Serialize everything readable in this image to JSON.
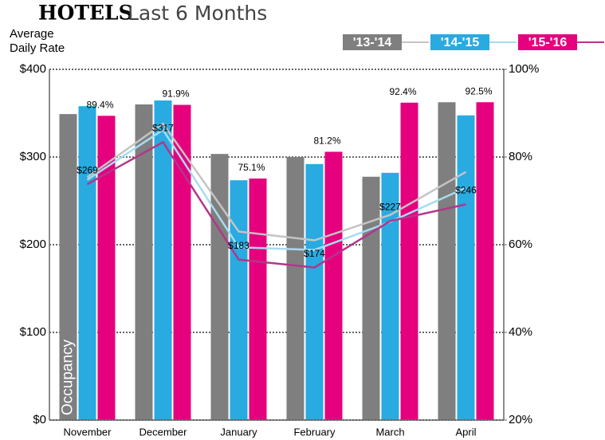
{
  "chart_data": {
    "type": "bar-line",
    "title": "HOTELS",
    "subtitle": "Last 6 Months",
    "y_label": "Average Daily Rate",
    "y2_label": "Occupancy",
    "categories": [
      "November",
      "December",
      "January",
      "February",
      "March",
      "April"
    ],
    "series": [
      {
        "name": "'13-'14",
        "color": "#7f7f7f",
        "line_color": "#c4c4c4",
        "axis": "y2",
        "values": [
          89.8,
          92.0,
          80.7,
          80.0,
          75.5,
          92.5
        ],
        "rate_values": [
          277,
          338,
          215,
          205,
          234,
          283
        ]
      },
      {
        "name": "'14-'15",
        "color": "#29aae1",
        "line_color": "#a6dcf0",
        "axis": "y2",
        "values": [
          91.6,
          92.9,
          74.7,
          78.4,
          76.4,
          89.5
        ],
        "rate_values": [
          274,
          331,
          197,
          194,
          226,
          265
        ]
      },
      {
        "name": "'15-'16",
        "color": "#e5007e",
        "line_color": "#b2368a",
        "axis": "y2",
        "values": [
          89.4,
          91.9,
          75.1,
          81.2,
          92.4,
          92.5
        ],
        "value_labels": [
          "89.4%",
          "91.9%",
          "75.1%",
          "81.2%",
          "92.4%",
          "92.5%"
        ],
        "rate_values": [
          269,
          317,
          183,
          174,
          227,
          246
        ],
        "rate_value_labels": [
          "$269",
          "$317",
          "$183",
          "$174",
          "$227",
          "$246"
        ]
      }
    ],
    "ylim": [
      0,
      400
    ],
    "yticks": [
      {
        "value": 0,
        "label": "$0"
      },
      {
        "value": 100,
        "label": "$100"
      },
      {
        "value": 200,
        "label": "$200"
      },
      {
        "value": 300,
        "label": "$300"
      },
      {
        "value": 400,
        "label": "$400"
      }
    ],
    "y2lim": [
      20,
      100
    ],
    "y2ticks": [
      {
        "value": 20,
        "label": "20%"
      },
      {
        "value": 40,
        "label": "40%"
      },
      {
        "value": 60,
        "label": "60%"
      },
      {
        "value": 80,
        "label": "80%"
      },
      {
        "value": 100,
        "label": "100%"
      }
    ],
    "grid": true
  }
}
